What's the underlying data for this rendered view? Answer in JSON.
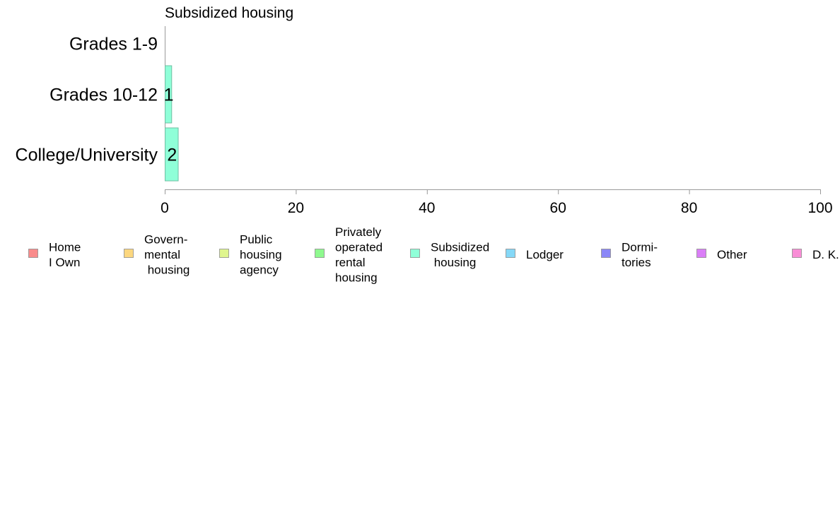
{
  "chart_data": {
    "type": "bar",
    "orientation": "horizontal",
    "title": "Subsidized housing",
    "xlabel": "",
    "ylabel": "",
    "categories": [
      "Grades 1-9",
      "Grades 10-12",
      "College/University"
    ],
    "series": [
      {
        "name": "Subsidized housing",
        "values": [
          0,
          1,
          2
        ],
        "labels": [
          "",
          "1",
          "2"
        ]
      }
    ],
    "xlim": [
      0,
      100
    ],
    "xticks": [
      "0",
      "20",
      "40",
      "60",
      "80",
      "100"
    ],
    "bar_color": "#8fffd8",
    "grid": false,
    "legend_position": "bottom",
    "legend": [
      {
        "name": "Home I Own",
        "lines": [
          "Home",
          "I Own"
        ],
        "color": "#f98b8b"
      },
      {
        "name": "Governmental housing",
        "lines": [
          "Govern-",
          "mental",
          " housing"
        ],
        "color": "#fcd77f"
      },
      {
        "name": "Public housing agency",
        "lines": [
          "Public",
          "housing",
          "agency"
        ],
        "color": "#dff58e"
      },
      {
        "name": "Privately operated rental housing",
        "lines": [
          "Privately",
          "operated",
          "rental",
          "housing"
        ],
        "color": "#8ef98e"
      },
      {
        "name": "Subsidized housing",
        "lines": [
          "Subsidized",
          " housing"
        ],
        "color": "#8fffd8"
      },
      {
        "name": "Lodger",
        "lines": [
          "Lodger"
        ],
        "color": "#85d8f7"
      },
      {
        "name": "Dormitories",
        "lines": [
          "Dormi-",
          "tories"
        ],
        "color": "#8a86f7"
      },
      {
        "name": "Other",
        "lines": [
          "Other"
        ],
        "color": "#da7ef7"
      },
      {
        "name": "D. K.",
        "lines": [
          "D. K."
        ],
        "color": "#f98dd6"
      }
    ]
  }
}
